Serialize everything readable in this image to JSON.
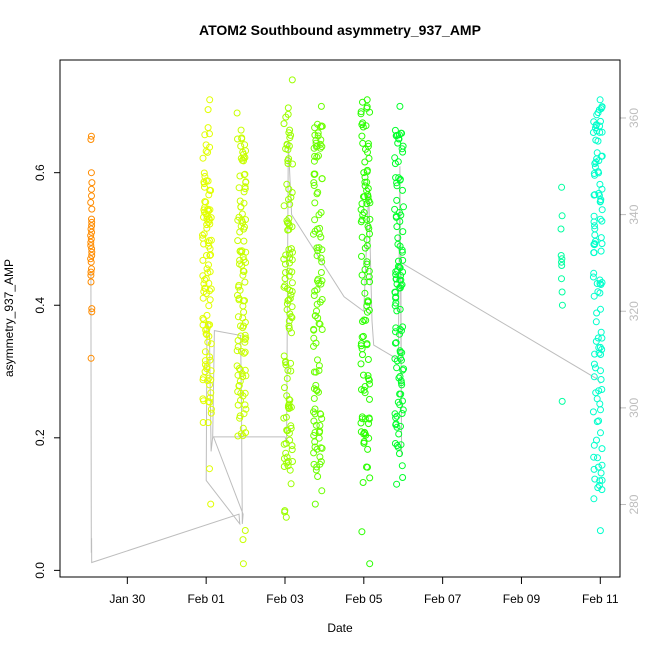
{
  "chart_data": {
    "type": "scatter",
    "title": "ATOM2 Southbound asymmetry_937_AMP",
    "xlabel": "Date",
    "ylabel": "asymmetry_937_AMP",
    "xlim": [
      "2024-01-28T07:00",
      "2024-02-11T12:00"
    ],
    "ylim": [
      -0.01,
      0.77
    ],
    "y2lim": [
      265,
      372
    ],
    "x_ticks": [
      {
        "date": "2024-01-30",
        "label": "Jan 30"
      },
      {
        "date": "2024-02-01",
        "label": "Feb 01"
      },
      {
        "date": "2024-02-03",
        "label": "Feb 03"
      },
      {
        "date": "2024-02-05",
        "label": "Feb 05"
      },
      {
        "date": "2024-02-07",
        "label": "Feb 07"
      },
      {
        "date": "2024-02-09",
        "label": "Feb 09"
      },
      {
        "date": "2024-02-11",
        "label": "Feb 11"
      }
    ],
    "y_ticks": [
      "0.0",
      "0.2",
      "0.4",
      "0.6"
    ],
    "y2_ticks": [
      "280",
      "300",
      "320",
      "340",
      "360"
    ],
    "axis_color": "#000000",
    "secondary_axis_color": "#bdbdbd",
    "line_color": "#bdbdbd",
    "groups": [
      {
        "center": "2024-01-29T02:00",
        "color": "#ff8c00",
        "min": 0.32,
        "max": 0.66,
        "core": [
          0.43,
          0.58
        ],
        "values": [
          0.655,
          0.65,
          0.6,
          0.585,
          0.575,
          0.565,
          0.555,
          0.545,
          0.53,
          0.525,
          0.52,
          0.515,
          0.51,
          0.505,
          0.5,
          0.495,
          0.49,
          0.485,
          0.48,
          0.475,
          0.47,
          0.465,
          0.455,
          0.45,
          0.445,
          0.435,
          0.395,
          0.39,
          0.32
        ]
      },
      {
        "center": "2024-02-01T00:30",
        "color": "#e1ff00",
        "min": 0.1,
        "max": 0.71,
        "core": [
          0.25,
          0.67
        ]
      },
      {
        "center": "2024-02-01T21:30",
        "color": "#c8ff00",
        "min": 0.01,
        "max": 0.69,
        "core": [
          0.2,
          0.67
        ]
      },
      {
        "center": "2024-02-03T02:00",
        "color": "#9cff00",
        "min": 0.08,
        "max": 0.74,
        "core": [
          0.15,
          0.7
        ]
      },
      {
        "center": "2024-02-03T20:00",
        "color": "#6bff00",
        "min": 0.1,
        "max": 0.7,
        "core": [
          0.14,
          0.69
        ]
      },
      {
        "center": "2024-02-05T01:00",
        "color": "#2bff00",
        "min": 0.01,
        "max": 0.71,
        "core": [
          0.13,
          0.7
        ]
      },
      {
        "center": "2024-02-05T21:30",
        "color": "#00ff2a",
        "min": 0.13,
        "max": 0.7,
        "core": [
          0.18,
          0.67
        ]
      },
      {
        "center": "2024-02-10T00:30",
        "color": "#00ffa0",
        "min": 0.25,
        "max": 0.58,
        "core": [
          0.4,
          0.47
        ],
        "values": [
          0.578,
          0.535,
          0.515,
          0.475,
          0.47,
          0.465,
          0.46,
          0.44,
          0.42,
          0.4,
          0.255
        ]
      },
      {
        "center": "2024-02-10T22:30",
        "color": "#00ffcc",
        "min": 0.06,
        "max": 0.71,
        "core": [
          0.12,
          0.7
        ]
      }
    ],
    "line_path": [
      [
        "2024-01-29T01:50",
        327
      ],
      [
        "2024-01-29T01:50",
        328
      ],
      [
        "2024-01-29T02:05",
        270
      ],
      [
        "2024-01-29T02:15",
        273
      ],
      [
        "2024-01-29T02:20",
        268
      ],
      [
        "2024-02-01T20:00",
        278
      ],
      [
        "2024-02-01T20:30",
        276
      ],
      [
        "2024-02-01T00:00",
        285
      ],
      [
        "2024-02-01T00:30",
        318
      ],
      [
        "2024-02-01T02:00",
        316
      ],
      [
        "2024-02-01T03:00",
        291
      ],
      [
        "2024-02-01T04:00",
        294
      ],
      [
        "2024-02-01T05:00",
        316
      ],
      [
        "2024-02-01T21:00",
        315
      ],
      [
        "2024-02-01T21:30",
        300
      ],
      [
        "2024-02-01T22:00",
        276
      ],
      [
        "2024-02-01T22:30",
        278
      ],
      [
        "2024-02-01T04:30",
        294
      ],
      [
        "2024-02-03T00:00",
        294
      ],
      [
        "2024-02-03T01:00",
        293
      ],
      [
        "2024-02-03T02:00",
        355
      ],
      [
        "2024-02-03T04:00",
        340
      ],
      [
        "2024-02-04T12:00",
        323
      ],
      [
        "2024-02-05T00:00",
        320
      ],
      [
        "2024-02-05T03:00",
        345
      ],
      [
        "2024-02-05T05:00",
        318
      ],
      [
        "2024-02-05T06:00",
        313
      ],
      [
        "2024-02-05T21:00",
        310
      ],
      [
        "2024-02-05T22:00",
        350
      ],
      [
        "2024-02-05T23:00",
        290
      ],
      [
        "2024-02-05T22:30",
        332
      ],
      [
        "2024-02-05T23:00",
        330
      ],
      [
        "2024-02-10T22:00",
        306
      ],
      [
        "2024-02-11T00:00",
        305
      ]
    ]
  }
}
